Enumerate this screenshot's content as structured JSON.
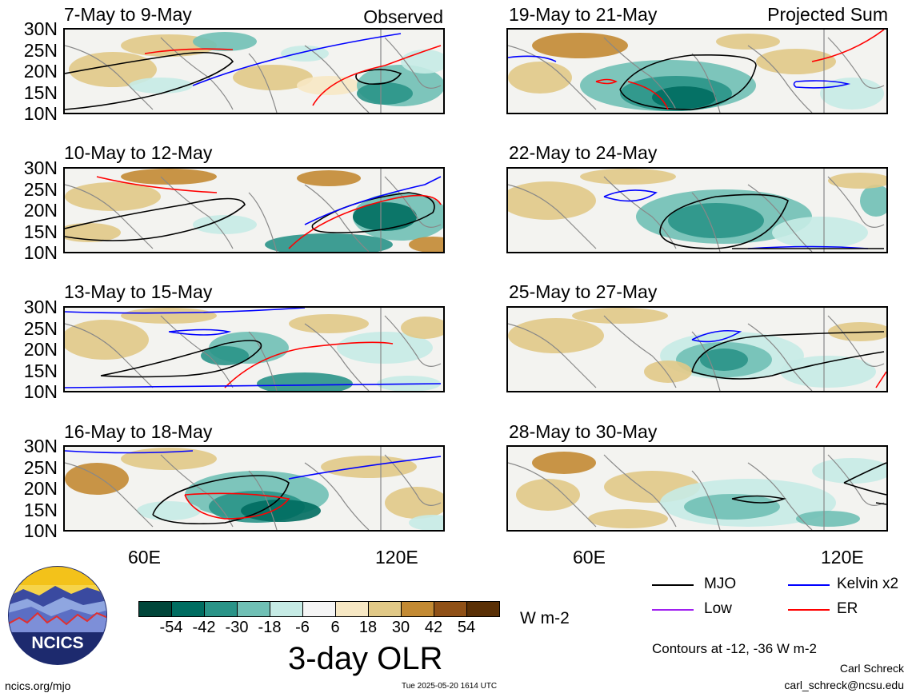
{
  "panels": [
    {
      "id": "p1",
      "title": "7-May to 9-May",
      "tag": "Observed",
      "col": "left"
    },
    {
      "id": "p2",
      "title": "10-May to 12-May",
      "tag": "",
      "col": "left"
    },
    {
      "id": "p3",
      "title": "13-May to 15-May",
      "tag": "",
      "col": "left"
    },
    {
      "id": "p4",
      "title": "16-May to 18-May",
      "tag": "",
      "col": "left"
    },
    {
      "id": "p5",
      "title": "19-May to 21-May",
      "tag": "Projected Sum",
      "col": "right"
    },
    {
      "id": "p6",
      "title": "22-May to 24-May",
      "tag": "",
      "col": "right"
    },
    {
      "id": "p7",
      "title": "25-May to 27-May",
      "tag": "",
      "col": "right"
    },
    {
      "id": "p8",
      "title": "28-May to 30-May",
      "tag": "",
      "col": "right"
    }
  ],
  "lat_labels": [
    "30N",
    "25N",
    "20N",
    "15N",
    "10N"
  ],
  "lon_labels": [
    "60E",
    "120E"
  ],
  "colorbar": {
    "colors": [
      "#01463a",
      "#006d61",
      "#2a9488",
      "#70c0b5",
      "#c6ebe5",
      "#f5f5f5",
      "#f7e8c4",
      "#e1c987",
      "#c38a33",
      "#905117",
      "#5a3006"
    ],
    "labels": [
      "-54",
      "-42",
      "-30",
      "-18",
      "-6",
      "6",
      "18",
      "30",
      "42",
      "54"
    ],
    "units": "W m-2",
    "title": "3-day OLR"
  },
  "legend": [
    {
      "label": "MJO",
      "color": "#000000"
    },
    {
      "label": "Kelvin x2",
      "color": "#0000ff"
    },
    {
      "label": "Low",
      "color": "#a020f0"
    },
    {
      "label": "ER",
      "color": "#ff0000"
    }
  ],
  "contour_note": "Contours at -12, -36 W m-2",
  "author": "Carl Schreck",
  "email": "carl_schreck@ncsu.edu",
  "site": "ncics.org/mjo",
  "timestamp": "Tue 2025-05-20 1614 UTC",
  "logo_text": "NCICS"
}
